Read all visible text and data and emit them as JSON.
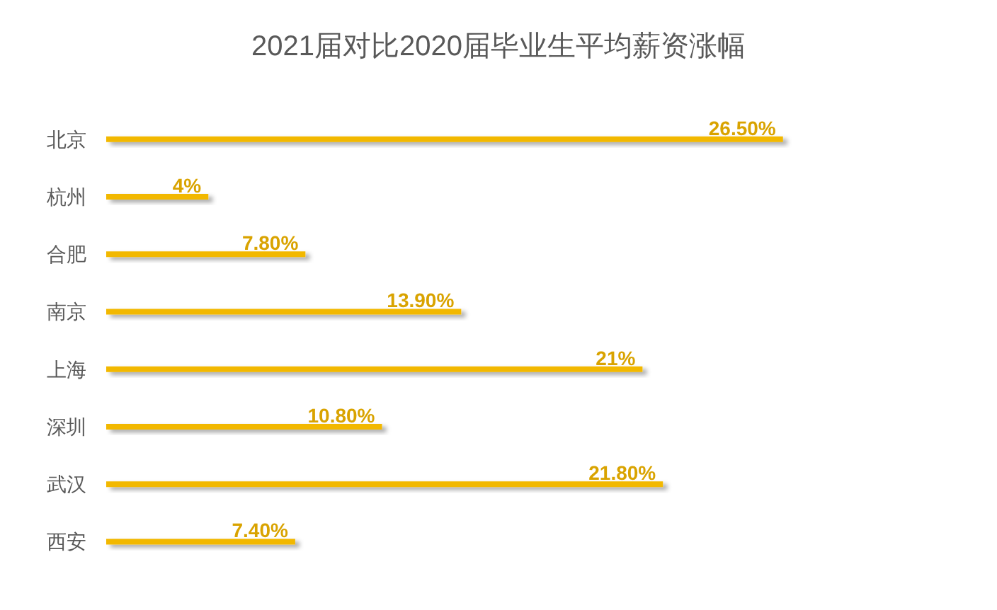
{
  "chart_data": {
    "type": "bar",
    "orientation": "horizontal",
    "title": "2021届对比2020届毕业生平均薪资涨幅",
    "categories": [
      "北京",
      "杭州",
      "合肥",
      "南京",
      "上海",
      "深圳",
      "武汉",
      "西安"
    ],
    "values": [
      26.5,
      4,
      7.8,
      13.9,
      21,
      10.8,
      21.8,
      7.4
    ],
    "value_labels": [
      "26.50%",
      "4%",
      "7.80%",
      "13.90%",
      "21%",
      "10.80%",
      "21.80%",
      "7.40%"
    ],
    "color": "#f2b800"
  }
}
